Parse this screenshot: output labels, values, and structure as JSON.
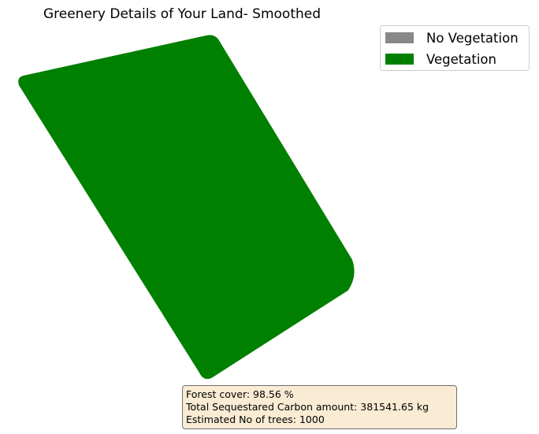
{
  "title": "Greenery Details of Your Land- Smoothed",
  "legend": {
    "items": [
      {
        "label": "No Vegetation",
        "color": "#888888"
      },
      {
        "label": "Vegetation",
        "color": "#008000"
      }
    ]
  },
  "land": {
    "color": "#008000",
    "vegetation_share_visible": "all"
  },
  "info": {
    "forest_cover": "Forest cover: 98.56 %",
    "carbon": "Total Sequestared Carbon amount: 381541.65 kg",
    "trees": "Estimated No of trees: 1000"
  }
}
